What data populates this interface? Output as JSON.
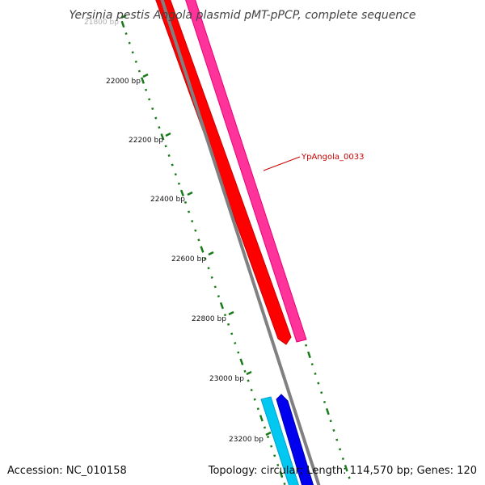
{
  "title": "Yersinia pestis Angola plasmid pMT-pPCP, complete sequence",
  "footer": {
    "accession": "Accession: NC_010158",
    "summary": "Topology: circular; Length: 114,570 bp; Genes: 120"
  },
  "ticks": [
    {
      "label": "21800 bp",
      "faded": true
    },
    {
      "label": "22000 bp",
      "faded": false
    },
    {
      "label": "22200 bp",
      "faded": false
    },
    {
      "label": "22400 bp",
      "faded": false
    },
    {
      "label": "22600 bp",
      "faded": false
    },
    {
      "label": "22800 bp",
      "faded": false
    },
    {
      "label": "23000 bp",
      "faded": false
    },
    {
      "label": "23200 bp",
      "faded": false
    }
  ],
  "gene_label": {
    "text": "YpAngola_0033",
    "color": "#cc0000"
  },
  "colors": {
    "backbone": "#808080",
    "tick": "#1a7a1a",
    "gene_red": "#ff0000",
    "gene_red_dark": "#cc0000",
    "gene_pink": "#ff3399",
    "gene_pink_dark": "#e6007a",
    "gene_cyan": "#00c8f0",
    "gene_blue": "#0000ee",
    "gene_blue_dark": "#0000aa"
  }
}
